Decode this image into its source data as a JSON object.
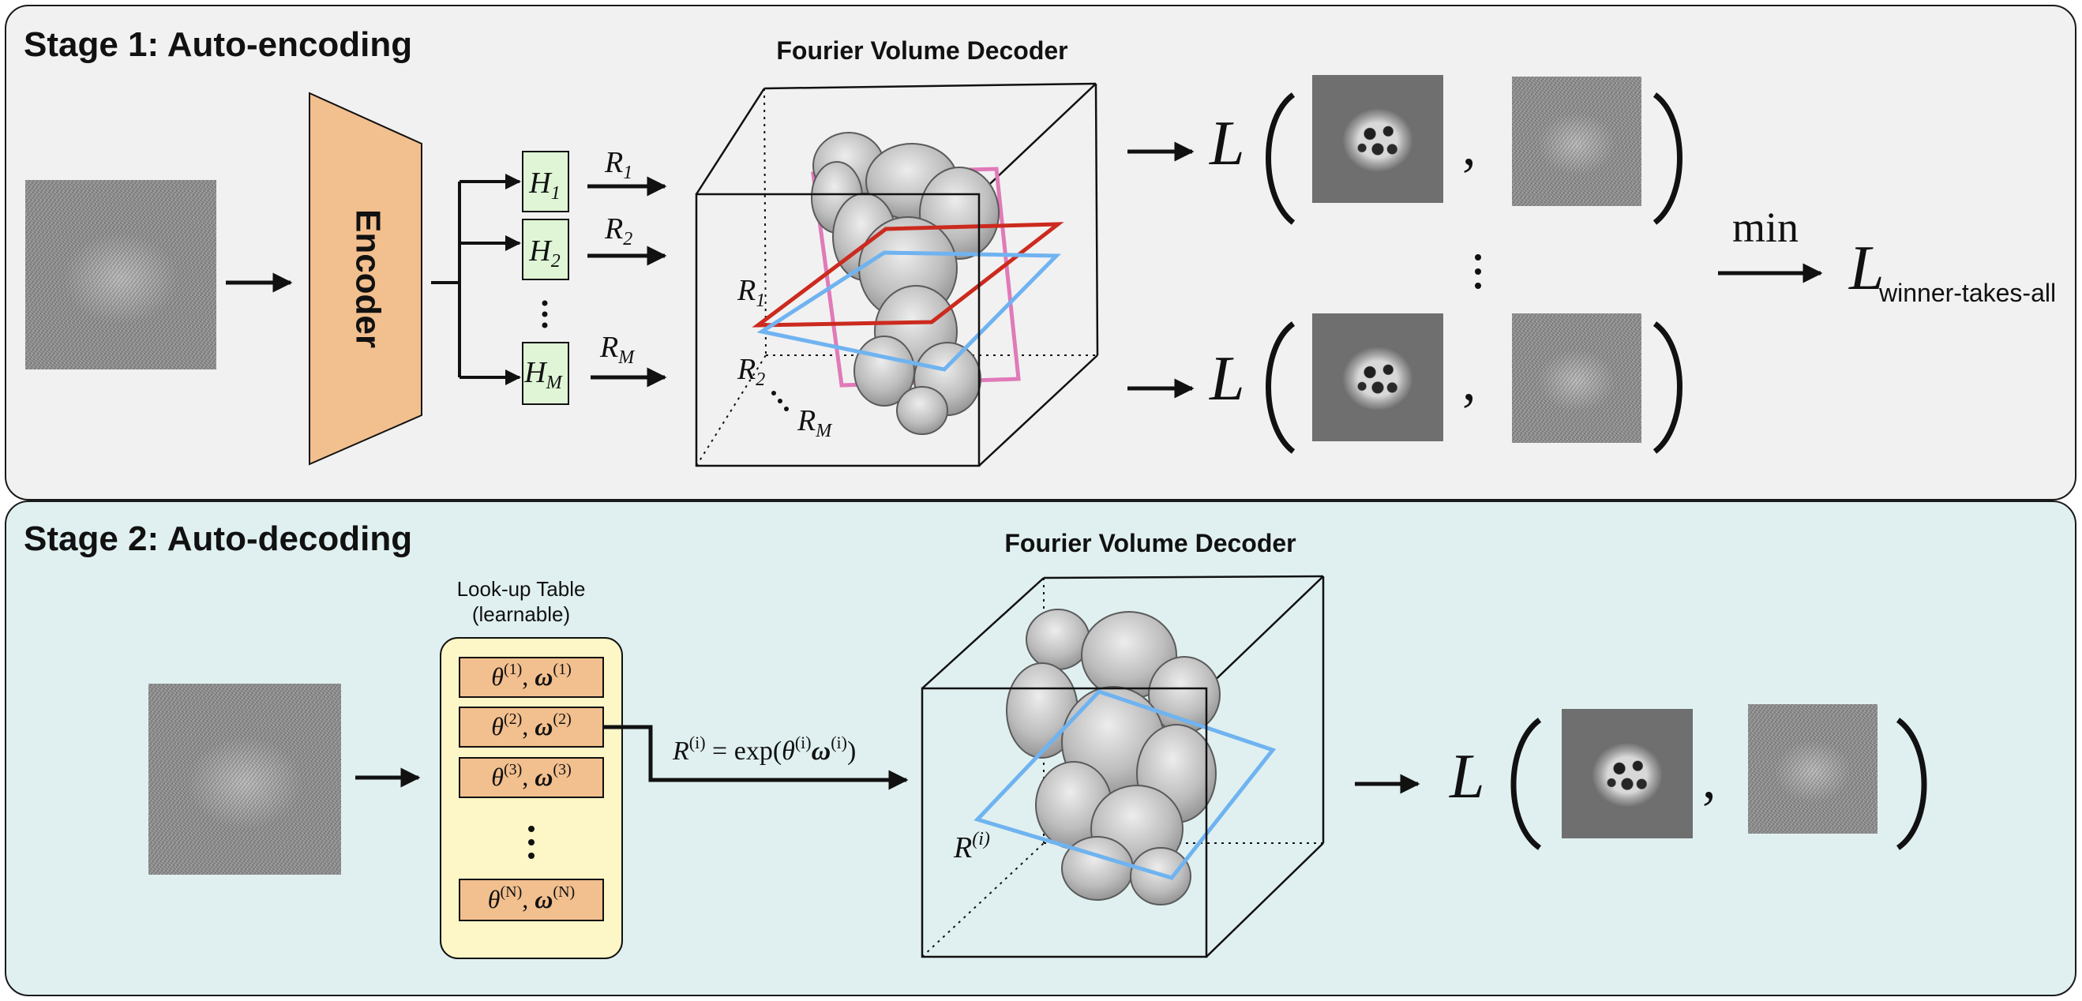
{
  "stage1": {
    "title": "Stage 1: Auto-encoding",
    "decoder_title": "Fourier Volume Decoder",
    "encoder_label": "Encoder",
    "hypotheses": [
      {
        "base": "H",
        "sub": "1"
      },
      {
        "base": "H",
        "sub": "2"
      },
      {
        "base": "H",
        "sub": "M"
      }
    ],
    "rotations": [
      {
        "base": "R",
        "sub": "1"
      },
      {
        "base": "R",
        "sub": "2"
      },
      {
        "base": "R",
        "sub": "M"
      }
    ],
    "loss_symbol": "L",
    "comma": ",",
    "min_label": "min",
    "wta_base": "L",
    "wta_sub": "winner-takes-all",
    "colors": {
      "plane_1": "#6fb3f0",
      "plane_2": "#cc2a1e",
      "plane_M": "#e07ab8",
      "encoder": "#f2bf8e",
      "hypothesis_box": "#dff5d6"
    }
  },
  "stage2": {
    "title": "Stage 2: Auto-decoding",
    "decoder_title": "Fourier Volume Decoder",
    "lut_title_line1": "Look-up Table",
    "lut_title_line2": "(learnable)",
    "lut_entries": [
      {
        "theta": "θ",
        "omega": "ω",
        "idx": "(1)"
      },
      {
        "theta": "θ",
        "omega": "ω",
        "idx": "(2)"
      },
      {
        "theta": "θ",
        "omega": "ω",
        "idx": "(3)"
      },
      {
        "theta": "θ",
        "omega": "ω",
        "idx": "(N)"
      }
    ],
    "rotation_lhs": "R",
    "rotation_lhs_sup": "(i)",
    "rotation_eq": " = exp(",
    "rotation_theta": "θ",
    "rotation_sup_i": "(i)",
    "rotation_omega": "ω",
    "rotation_close": ")",
    "plane_label": "R",
    "plane_label_sup": "(i)",
    "loss_symbol": "L",
    "comma": ",",
    "colors": {
      "lut_panel": "#fdf6c6",
      "lut_entry": "#f2bf8e",
      "plane": "#6fb3f0"
    }
  }
}
